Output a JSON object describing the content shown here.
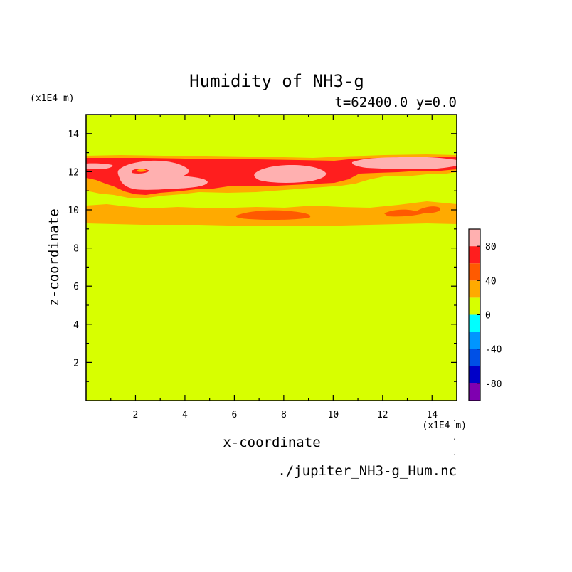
{
  "chart_data": {
    "type": "contour",
    "title": "Humidity of NH3-g",
    "subtitle": "t=62400.0 y=0.0",
    "xlabel": "x-coordinate",
    "ylabel": "z-coordinate",
    "x_unit": "(x1E4 m)",
    "y_unit": "(x1E4 m)",
    "source_file": "./jupiter_NH3-g_Hum.nc",
    "xlim": [
      0,
      15
    ],
    "ylim": [
      0,
      15
    ],
    "x_ticks": [
      2,
      4,
      6,
      8,
      10,
      12,
      14
    ],
    "y_ticks": [
      2,
      4,
      6,
      8,
      10,
      12,
      14
    ],
    "colorbar": {
      "range": [
        -100,
        100
      ],
      "tick_labels": [
        -80,
        -40,
        0,
        40,
        80
      ],
      "levels": [
        {
          "from": -100,
          "to": -80,
          "color": "#7f00b0"
        },
        {
          "from": -80,
          "to": -60,
          "color": "#0000c8"
        },
        {
          "from": -60,
          "to": -40,
          "color": "#0050e6"
        },
        {
          "from": -40,
          "to": -20,
          "color": "#0096ff"
        },
        {
          "from": -20,
          "to": 0,
          "color": "#00ffff"
        },
        {
          "from": 0,
          "to": 20,
          "color": "#d7ff00"
        },
        {
          "from": 20,
          "to": 40,
          "color": "#ffaa00"
        },
        {
          "from": 40,
          "to": 60,
          "color": "#ff5a00"
        },
        {
          "from": 60,
          "to": 80,
          "color": "#ff1e1e"
        },
        {
          "from": 80,
          "to": 100,
          "color": "#ffb0b0"
        }
      ]
    },
    "background_level": "0 to 20",
    "regions": [
      {
        "level": "20 to 40",
        "description": "orange band",
        "x_range": [
          0,
          15
        ],
        "z_range": [
          9.1,
          10.3
        ]
      },
      {
        "level": "20 to 40",
        "description": "orange band",
        "x_range": [
          0,
          15
        ],
        "z_range": [
          10.8,
          12.8
        ]
      },
      {
        "level": "40 to 60",
        "description": "patch",
        "x_range": [
          6.0,
          9.5
        ],
        "z_range": [
          9.4,
          9.8
        ]
      },
      {
        "level": "40 to 60",
        "description": "patch",
        "x_range": [
          11.5,
          14.0
        ],
        "z_range": [
          9.6,
          10.2
        ]
      },
      {
        "level": "60 to 80",
        "description": "red band",
        "x_range": [
          0,
          15
        ],
        "z_range": [
          11.2,
          12.7
        ]
      },
      {
        "level": "80 to 100",
        "description": "pink blob",
        "x_range": [
          1.3,
          4.2
        ],
        "z_range": [
          10.8,
          12.5
        ]
      },
      {
        "level": "80 to 100",
        "description": "pink blob",
        "x_range": [
          6.5,
          9.2
        ],
        "z_range": [
          11.4,
          12.4
        ]
      },
      {
        "level": "80 to 100",
        "description": "pink blob",
        "x_range": [
          10.8,
          15.0
        ],
        "z_range": [
          11.9,
          12.6
        ]
      },
      {
        "level": "80 to 100",
        "description": "pink blob",
        "x_range": [
          0.0,
          1.2
        ],
        "z_range": [
          11.9,
          12.4
        ]
      }
    ]
  }
}
